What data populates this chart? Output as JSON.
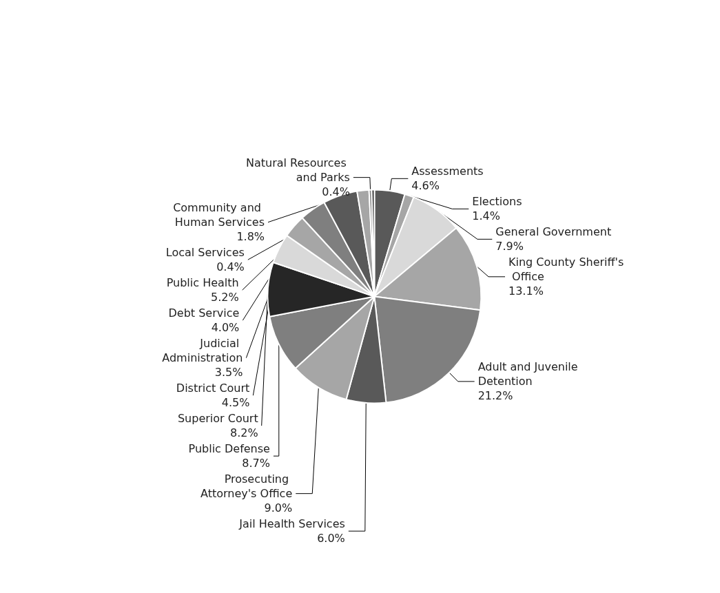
{
  "chart_data": {
    "type": "pie",
    "legend": false,
    "categories": [
      "Assessments",
      "Elections",
      "General Government",
      "King County Sheriff's Office",
      "Adult and Juvenile Detention",
      "Jail Health Services",
      "Prosecuting Attorney's Office",
      "Public Defense",
      "Superior Court",
      "District Court",
      "Judicial Administration",
      "Debt Service",
      "Public Health",
      "Community and Human Services",
      "Natural Resources and Parks",
      "Local Services"
    ],
    "values": [
      4.6,
      1.4,
      7.9,
      13.1,
      21.2,
      6.0,
      9.0,
      8.7,
      8.2,
      4.5,
      3.5,
      4.0,
      5.2,
      1.8,
      0.4,
      0.4
    ],
    "value_labels": [
      "4.6%",
      "1.4%",
      "7.9%",
      "13.1%",
      "21.2%",
      "6.0%",
      "9.0%",
      "8.7%",
      "8.2%",
      "4.5%",
      "3.5%",
      "4.0%",
      "5.2%",
      "1.8%",
      "0.4%",
      "0.4%"
    ],
    "colors": [
      "#595959",
      "#a6a6a6",
      "#d9d9d9",
      "#a6a6a6",
      "#7f7f7f",
      "#595959",
      "#a6a6a6",
      "#7f7f7f",
      "#262626",
      "#d9d9d9",
      "#a6a6a6",
      "#7f7f7f",
      "#595959",
      "#a6a6a6",
      "#7f7f7f",
      "#262626"
    ]
  }
}
